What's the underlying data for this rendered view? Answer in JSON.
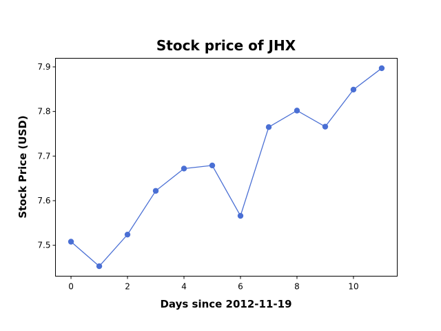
{
  "chart_data": {
    "type": "line",
    "title": "Stock price of JHX",
    "xlabel": "Days since 2012-11-19",
    "ylabel": "Stock Price (USD)",
    "x": [
      0,
      1,
      2,
      3,
      4,
      5,
      6,
      7,
      8,
      9,
      10,
      11
    ],
    "series": [
      {
        "values": [
          7.508,
          7.453,
          7.524,
          7.622,
          7.672,
          7.679,
          7.566,
          7.765,
          7.802,
          7.766,
          7.849,
          7.897
        ],
        "color": "#4a6fd4"
      }
    ],
    "xticks": [
      0,
      2,
      4,
      6,
      8,
      10
    ],
    "yticks": [
      7.5,
      7.6,
      7.7,
      7.8,
      7.9
    ],
    "xlim": [
      -0.55,
      11.55
    ],
    "ylim": [
      7.4307,
      7.9193
    ],
    "grid": false,
    "markers": true
  }
}
